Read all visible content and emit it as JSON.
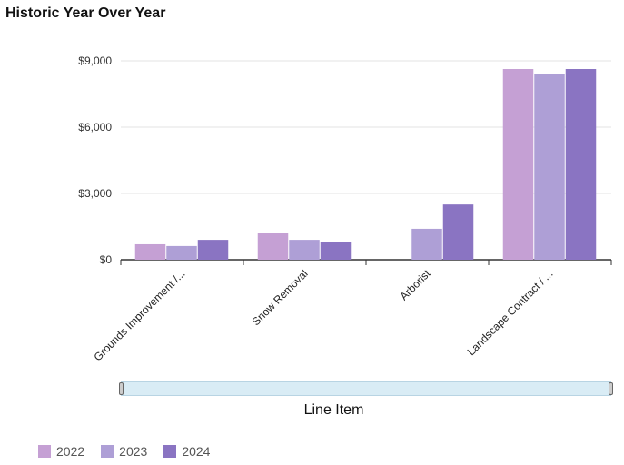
{
  "title": "Historic Year Over Year",
  "chart_data": {
    "type": "bar",
    "title": "Historic Year Over Year",
    "xlabel": "Line Item",
    "ylabel": "",
    "categories": [
      "Grounds Improvement /...",
      "Snow Removal",
      "Arborist",
      "Landscape Contract / ..."
    ],
    "series": [
      {
        "name": "2022",
        "color": "#c5a0d4",
        "values": [
          700,
          1200,
          0,
          8630
        ]
      },
      {
        "name": "2023",
        "color": "#ae9fd6",
        "values": [
          620,
          900,
          1400,
          8400
        ]
      },
      {
        "name": "2024",
        "color": "#8a74c2",
        "values": [
          900,
          800,
          2500,
          8630
        ]
      }
    ],
    "ylim": [
      0,
      9000
    ],
    "yticks": [
      0,
      3000,
      6000,
      9000
    ],
    "ytick_labels": [
      "$0",
      "$3,000",
      "$6,000",
      "$9,000"
    ],
    "grid": true,
    "legend": "bottom-left"
  }
}
